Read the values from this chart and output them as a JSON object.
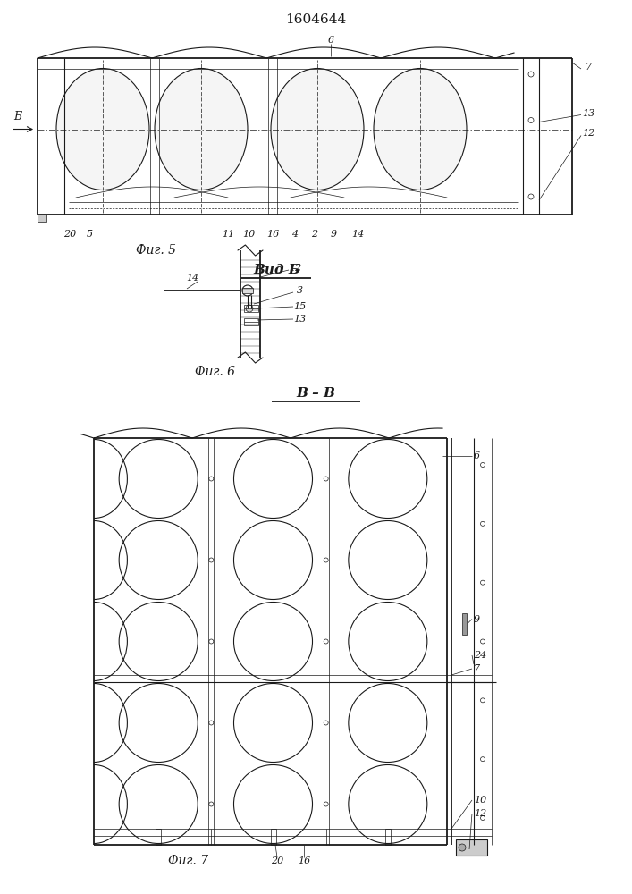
{
  "title": "1604644",
  "bg_color": "#ffffff",
  "line_color": "#1a1a1a",
  "fig5_caption": "Фиг. 5",
  "fig6_caption": "Фиг. 6",
  "fig7_caption": "Фиг. 7",
  "vid_b_label": "Вид Б",
  "section_vv_label": "В – В"
}
